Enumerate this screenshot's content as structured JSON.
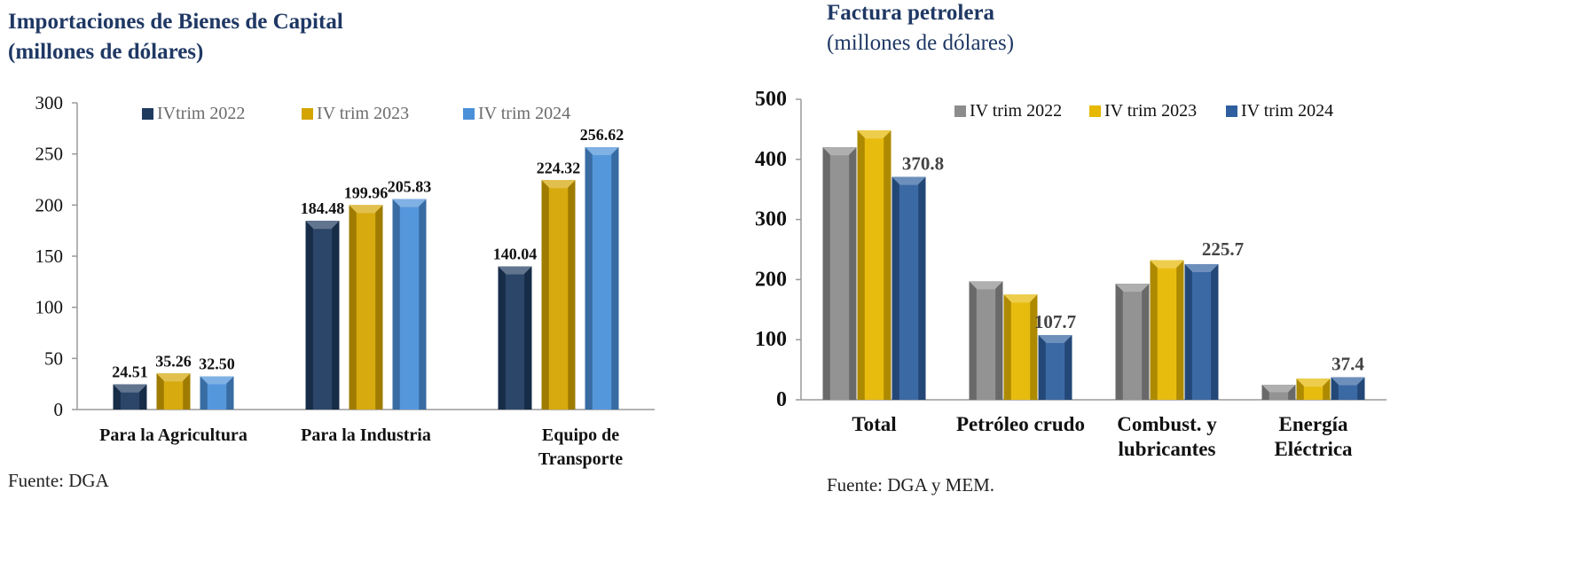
{
  "charts": {
    "left": {
      "title_line1": "Importaciones de Bienes de Capital",
      "title_line2": "(millones de dólares)",
      "source": "Fuente: DGA"
    },
    "right": {
      "title_line1": "Factura petrolera",
      "title_line2": "(millones de dólares)",
      "source": "Fuente: DGA y MEM."
    }
  },
  "chart_data": [
    {
      "type": "bar",
      "title": "Importaciones de Bienes de Capital (millones de dólares)",
      "categories": [
        [
          "Para la Agricultura"
        ],
        [
          "Para la Industria"
        ],
        [
          "Equipo de",
          "Transporte"
        ]
      ],
      "series": [
        {
          "name": "IVtrim 2022",
          "values": [
            24.51,
            184.48,
            140.04
          ],
          "labels": [
            "24.51",
            "184.48",
            "140.04"
          ],
          "color": "#1f3a5f"
        },
        {
          "name": "IV trim 2023",
          "values": [
            35.26,
            199.96,
            224.32
          ],
          "labels": [
            "35.26",
            "199.96",
            "224.32"
          ],
          "color": "#d4a500"
        },
        {
          "name": "IV trim 2024",
          "values": [
            32.5,
            205.83,
            256.62
          ],
          "labels": [
            "32.50",
            "205.83",
            "256.62"
          ],
          "color": "#4a90d9"
        }
      ],
      "ylim": [
        0,
        300
      ],
      "yticks": [
        0,
        50,
        100,
        150,
        200,
        250,
        300
      ],
      "legend": "top",
      "grid": false
    },
    {
      "type": "bar",
      "title": "Factura petrolera (millones de dólares)",
      "categories": [
        [
          "Total"
        ],
        [
          "Petróleo crudo"
        ],
        [
          "Combust. y",
          "lubricantes"
        ],
        [
          "Energía",
          "Eléctrica"
        ]
      ],
      "series": [
        {
          "name": "IV trim 2022",
          "values": [
            420,
            197,
            193,
            25
          ],
          "labels": [
            null,
            null,
            null,
            null
          ],
          "color": "#8c8c8c"
        },
        {
          "name": "IV trim 2023",
          "values": [
            448,
            175,
            232,
            35
          ],
          "labels": [
            null,
            null,
            null,
            null
          ],
          "color": "#e6b800"
        },
        {
          "name": "IV trim  2024",
          "values": [
            370.8,
            107.7,
            225.7,
            37.4
          ],
          "labels": [
            "370.8",
            "107.7",
            "225.7",
            "37.4"
          ],
          "color": "#2f5f9e"
        }
      ],
      "ylim": [
        0,
        500
      ],
      "yticks": [
        0,
        100,
        200,
        300,
        400,
        500
      ],
      "legend": "top",
      "grid": false
    }
  ]
}
